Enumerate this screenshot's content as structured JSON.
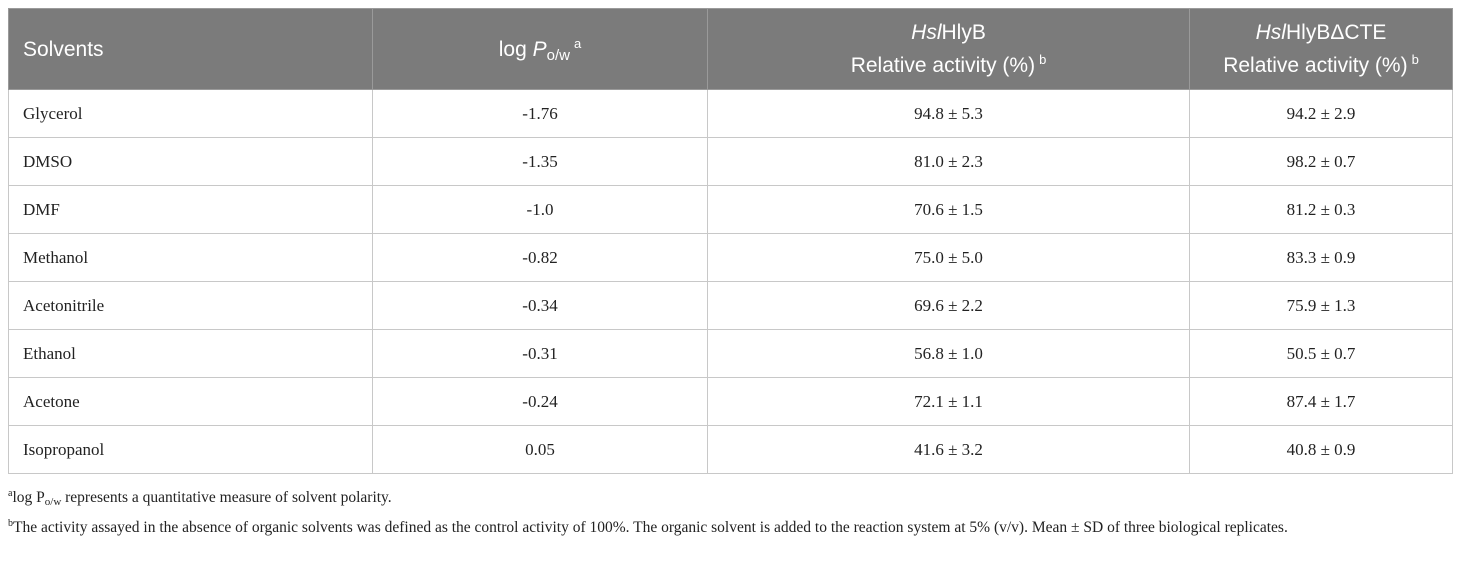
{
  "table": {
    "headers": {
      "solvents": "Solvents",
      "logp_prefix": "log ",
      "logp_var": "P",
      "logp_sub": "o/w",
      "logp_sup": "a",
      "col2_italic": "Hsl",
      "col2_name": "HlyB",
      "col2_label": "Relative activity (%)",
      "col2_sup": "b",
      "col3_italic": "Hsl",
      "col3_name": "HlyBΔCTE",
      "col3_label": "Relative activity (%)",
      "col3_sup": "b"
    },
    "rows": [
      {
        "solvent": "Glycerol",
        "logp": "-1.76",
        "hlyb": "94.8 ± 5.3",
        "hlyb_dcte": "94.2 ± 2.9"
      },
      {
        "solvent": "DMSO",
        "logp": "-1.35",
        "hlyb": "81.0 ± 2.3",
        "hlyb_dcte": "98.2 ± 0.7"
      },
      {
        "solvent": "DMF",
        "logp": "-1.0",
        "hlyb": "70.6 ± 1.5",
        "hlyb_dcte": "81.2 ± 0.3"
      },
      {
        "solvent": "Methanol",
        "logp": "-0.82",
        "hlyb": "75.0 ± 5.0",
        "hlyb_dcte": "83.3 ± 0.9"
      },
      {
        "solvent": "Acetonitrile",
        "logp": "-0.34",
        "hlyb": "69.6 ± 2.2",
        "hlyb_dcte": "75.9 ± 1.3"
      },
      {
        "solvent": "Ethanol",
        "logp": "-0.31",
        "hlyb": "56.8 ± 1.0",
        "hlyb_dcte": "50.5 ± 0.7"
      },
      {
        "solvent": "Acetone",
        "logp": "-0.24",
        "hlyb": "72.1 ± 1.1",
        "hlyb_dcte": "87.4 ± 1.7"
      },
      {
        "solvent": "Isopropanol",
        "logp": "0.05",
        "hlyb": "41.6 ± 3.2",
        "hlyb_dcte": "40.8 ± 0.9"
      }
    ]
  },
  "footnotes": {
    "a_mark": "a",
    "a_text_prefix": "log P",
    "a_text_sub": "o/w",
    "a_text_rest": " represents a quantitative measure of solvent polarity.",
    "b_mark": "b",
    "b_text": "The activity assayed in the absence of organic solvents was defined as the control activity of 100%. The organic solvent is added to the reaction system at 5% (v/v). Mean ± SD of three biological replicates."
  }
}
